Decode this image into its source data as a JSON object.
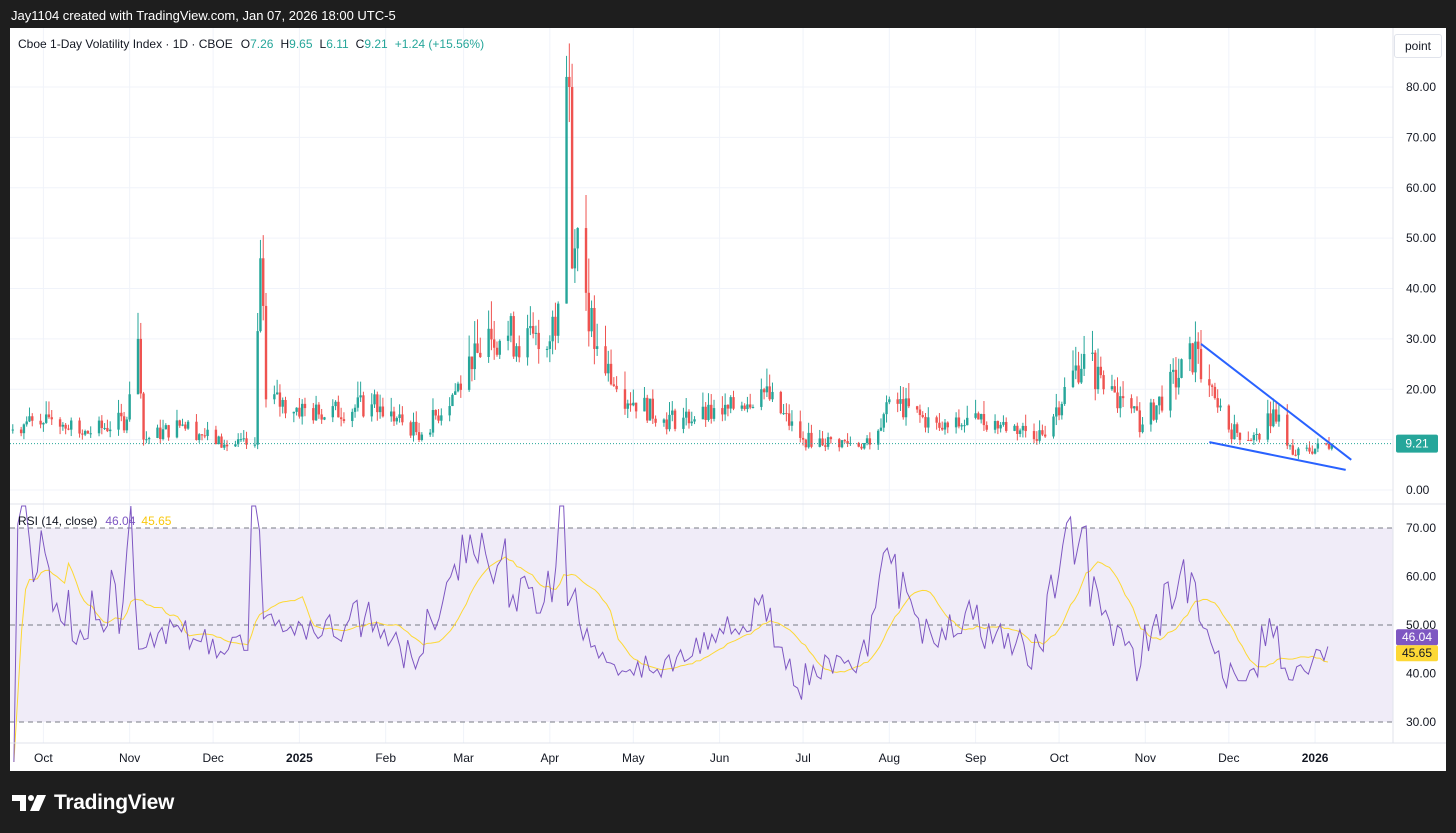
{
  "header_caption": "Jay1104 created with TradingView.com, Jan 07, 2026 18:00 UTC-5",
  "brand": "TradingView",
  "unit_button": "point",
  "legend": {
    "symbol": "Cboe 1-Day Volatility Index · 1D · CBOE",
    "o_label": "O",
    "o_value": "7.26",
    "h_label": "H",
    "h_value": "9.65",
    "l_label": "L",
    "l_value": "6.11",
    "c_label": "C",
    "c_value": "9.21",
    "change": "+1.24 (+15.56%)"
  },
  "rsi_legend": {
    "label": "RSI (14, close)",
    "rsi_value": "46.04",
    "ma_value": "45.65"
  },
  "colors": {
    "up": "#26a69a",
    "down": "#ef5350",
    "rsi": "#7e57c2",
    "rsi_ma": "#fdd835",
    "trendline": "#2962ff",
    "band": "#f0ecf8"
  },
  "chart_data": [
    {
      "type": "candlestick",
      "title": "Cboe 1-Day Volatility Index · 1D · CBOE",
      "ylim": [
        0,
        85
      ],
      "y_ticks": [
        "80.00",
        "70.00",
        "60.00",
        "50.00",
        "40.00",
        "30.00",
        "20.00",
        "10.00",
        "0.00"
      ],
      "x_ticks": [
        "Oct",
        "Nov",
        "Dec",
        "2025",
        "Feb",
        "Mar",
        "Apr",
        "May",
        "Jun",
        "Jul",
        "Aug",
        "Sep",
        "Oct",
        "Nov",
        "Dec",
        "2026"
      ],
      "x_range": [
        "2024-09-19",
        "2026-01-29"
      ],
      "last_price": "9.21",
      "last_price_value": 9.21,
      "points": [
        {
          "date": "2024-09-20",
          "close": 12
        },
        {
          "date": "2024-10-02",
          "close": 15
        },
        {
          "date": "2024-10-15",
          "close": 11
        },
        {
          "date": "2024-10-31",
          "close": 14
        },
        {
          "date": "2024-11-04",
          "close": 30
        },
        {
          "date": "2024-11-06",
          "close": 10
        },
        {
          "date": "2024-11-20",
          "close": 13
        },
        {
          "date": "2024-12-05",
          "close": 9
        },
        {
          "date": "2024-12-16",
          "close": 9
        },
        {
          "date": "2024-12-18",
          "close": 46
        },
        {
          "date": "2024-12-20",
          "close": 18
        },
        {
          "date": "2025-01-08",
          "close": 15
        },
        {
          "date": "2025-01-27",
          "close": 17
        },
        {
          "date": "2025-02-14",
          "close": 11
        },
        {
          "date": "2025-03-04",
          "close": 24
        },
        {
          "date": "2025-03-10",
          "close": 32
        },
        {
          "date": "2025-03-31",
          "close": 28
        },
        {
          "date": "2025-04-04",
          "close": 37
        },
        {
          "date": "2025-04-07",
          "close": 82
        },
        {
          "date": "2025-04-08",
          "close": 80
        },
        {
          "date": "2025-04-09",
          "close": 44
        },
        {
          "date": "2025-04-11",
          "close": 52
        },
        {
          "date": "2025-04-17",
          "close": 28
        },
        {
          "date": "2025-04-25",
          "close": 20
        },
        {
          "date": "2025-05-12",
          "close": 14
        },
        {
          "date": "2025-06-02",
          "close": 15
        },
        {
          "date": "2025-06-16",
          "close": 20
        },
        {
          "date": "2025-07-01",
          "close": 10
        },
        {
          "date": "2025-07-25",
          "close": 9
        },
        {
          "date": "2025-08-01",
          "close": 18
        },
        {
          "date": "2025-08-20",
          "close": 12
        },
        {
          "date": "2025-09-02",
          "close": 14
        },
        {
          "date": "2025-09-25",
          "close": 11
        },
        {
          "date": "2025-10-10",
          "close": 27
        },
        {
          "date": "2025-10-17",
          "close": 20
        },
        {
          "date": "2025-10-31",
          "close": 13
        },
        {
          "date": "2025-11-20",
          "close": 28
        },
        {
          "date": "2025-11-21",
          "close": 22
        },
        {
          "date": "2025-12-01",
          "close": 12
        },
        {
          "date": "2025-12-12",
          "close": 10
        },
        {
          "date": "2025-12-17",
          "close": 16
        },
        {
          "date": "2025-12-24",
          "close": 7
        },
        {
          "date": "2026-01-07",
          "close": 9.21
        }
      ],
      "annotations": [
        {
          "type": "trendline",
          "points": [
            {
              "date": "2025-11-21",
              "value": 29
            },
            {
              "date": "2026-01-14",
              "value": 6
            }
          ]
        },
        {
          "type": "trendline",
          "points": [
            {
              "date": "2025-11-24",
              "value": 9.5
            },
            {
              "date": "2026-01-12",
              "value": 4
            }
          ]
        }
      ]
    },
    {
      "type": "line",
      "title": "RSI (14, close)",
      "ylim": [
        27,
        75
      ],
      "y_ticks": [
        "70.00",
        "60.00",
        "50.00",
        "40.00",
        "30.00"
      ],
      "bands": [
        30,
        50,
        70
      ],
      "series": [
        {
          "name": "RSI",
          "last": "46.04"
        },
        {
          "name": "MA",
          "last": "45.65"
        }
      ]
    }
  ]
}
